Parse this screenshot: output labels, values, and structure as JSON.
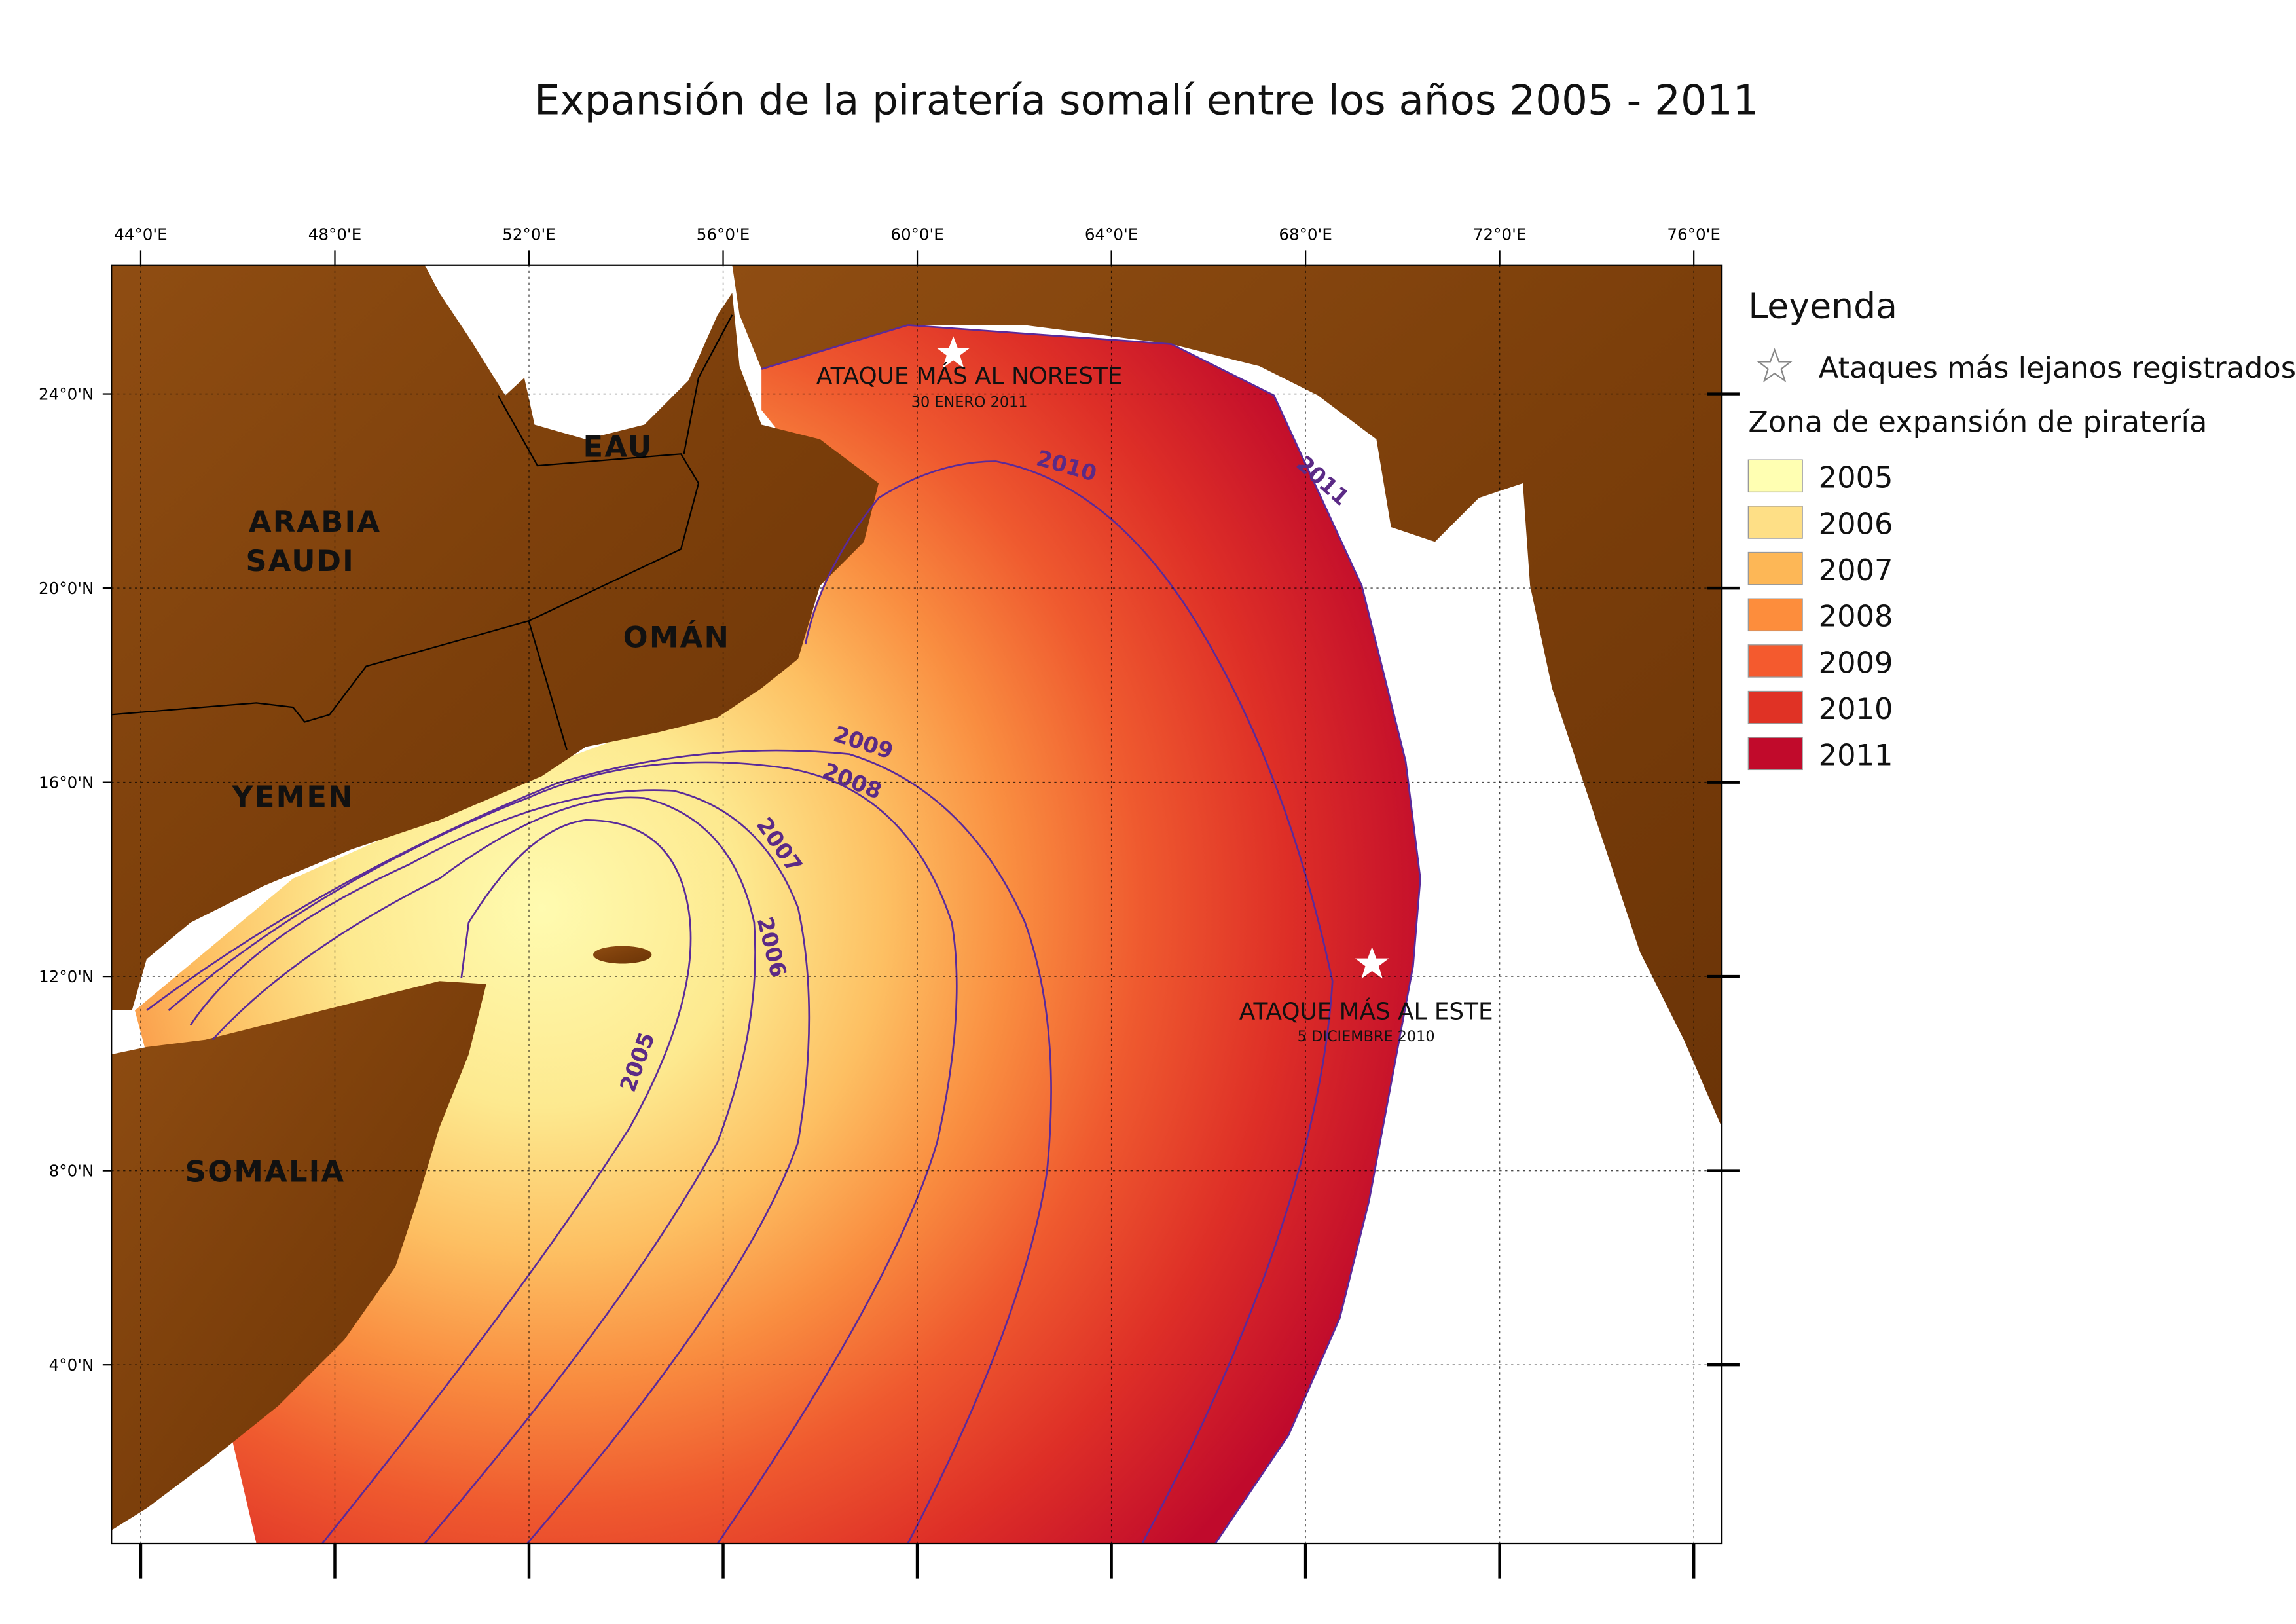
{
  "title": "Expansión de la piratería somalí entre los años 2005 - 2011",
  "map": {
    "lon_ticks": [
      "44°0'E",
      "48°0'E",
      "52°0'E",
      "56°0'E",
      "60°0'E",
      "64°0'E",
      "68°0'E",
      "72°0'E",
      "76°0'E"
    ],
    "lat_ticks": [
      "24°0'N",
      "20°0'N",
      "16°0'N",
      "12°0'N",
      "8°0'N",
      "4°0'N"
    ],
    "country_labels": [
      "ARABIA",
      "SAUDI",
      "EAU",
      "OMÁN",
      "YEMEN",
      "SOMALIA"
    ],
    "contour_labels": [
      "2005",
      "2006",
      "2007",
      "2008",
      "2009",
      "2010",
      "2011"
    ],
    "annotations": [
      {
        "label": "ATAQUE MÁS AL NORESTE",
        "date": "30 ENERO 2011"
      },
      {
        "label": "ATAQUE MÁS AL ESTE",
        "date": "5 DICIEMBRE 2010"
      }
    ]
  },
  "legend": {
    "title": "Leyenda",
    "star_label": "Ataques más lejanos registrados",
    "zone_title": "Zona de expansión de piratería",
    "zones": [
      {
        "label": "2005",
        "color": "#ffffb2"
      },
      {
        "label": "2006",
        "color": "#fedf86"
      },
      {
        "label": "2007",
        "color": "#fdb756"
      },
      {
        "label": "2008",
        "color": "#fd8d3c"
      },
      {
        "label": "2009",
        "color": "#f45a2e"
      },
      {
        "label": "2010",
        "color": "#e03225"
      },
      {
        "label": "2011",
        "color": "#c10a2b"
      }
    ]
  }
}
